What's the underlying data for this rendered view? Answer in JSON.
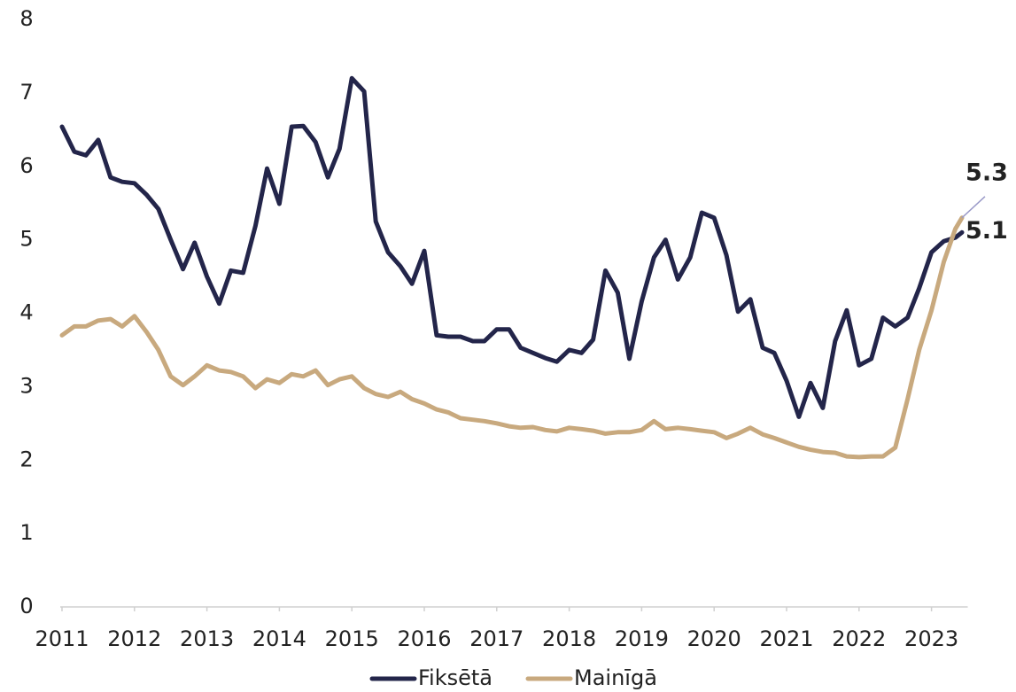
{
  "chart_data": {
    "type": "line",
    "x": [
      2011,
      2011.17,
      2011.33,
      2011.5,
      2011.67,
      2011.83,
      2012,
      2012.17,
      2012.33,
      2012.5,
      2012.67,
      2012.83,
      2013,
      2013.17,
      2013.33,
      2013.5,
      2013.67,
      2013.83,
      2014,
      2014.17,
      2014.33,
      2014.5,
      2014.67,
      2014.83,
      2015,
      2015.17,
      2015.33,
      2015.5,
      2015.67,
      2015.83,
      2016,
      2016.17,
      2016.33,
      2016.5,
      2016.67,
      2016.83,
      2017,
      2017.17,
      2017.33,
      2017.5,
      2017.67,
      2017.83,
      2018,
      2018.17,
      2018.33,
      2018.5,
      2018.67,
      2018.83,
      2019,
      2019.17,
      2019.33,
      2019.5,
      2019.67,
      2019.83,
      2020,
      2020.17,
      2020.33,
      2020.5,
      2020.67,
      2020.83,
      2021,
      2021.17,
      2021.33,
      2021.5,
      2021.67,
      2021.83,
      2022,
      2022.17,
      2022.33,
      2022.5,
      2022.67,
      2022.83,
      2023,
      2023.17,
      2023.33,
      2023.42
    ],
    "series": [
      {
        "name": "Fiksētā",
        "color": "#23254a",
        "end_label": "5.1",
        "values": [
          6.54,
          6.2,
          6.15,
          6.36,
          5.85,
          5.79,
          5.77,
          5.61,
          5.42,
          5.0,
          4.6,
          4.96,
          4.5,
          4.13,
          4.58,
          4.55,
          5.19,
          5.97,
          5.49,
          6.54,
          6.55,
          6.33,
          5.85,
          6.24,
          7.2,
          7.02,
          5.25,
          4.83,
          4.64,
          4.4,
          4.85,
          3.7,
          3.68,
          3.68,
          3.62,
          3.62,
          3.78,
          3.78,
          3.53,
          3.46,
          3.39,
          3.34,
          3.5,
          3.46,
          3.64,
          4.58,
          4.28,
          3.38,
          4.16,
          4.76,
          5.0,
          4.46,
          4.76,
          5.37,
          5.3,
          4.79,
          4.02,
          4.19,
          3.53,
          3.46,
          3.08,
          2.59,
          3.05,
          2.71,
          3.62,
          4.04,
          3.29,
          3.38,
          3.94,
          3.82,
          3.94,
          4.34,
          4.83,
          4.98,
          5.03,
          5.1
        ]
      },
      {
        "name": "Mainīgā",
        "color": "#c8a97e",
        "end_label": "5.3",
        "values": [
          3.7,
          3.82,
          3.82,
          3.9,
          3.92,
          3.82,
          3.96,
          3.74,
          3.5,
          3.14,
          3.02,
          3.14,
          3.29,
          3.22,
          3.2,
          3.14,
          2.98,
          3.1,
          3.05,
          3.17,
          3.14,
          3.22,
          3.02,
          3.1,
          3.14,
          2.98,
          2.9,
          2.86,
          2.93,
          2.83,
          2.77,
          2.69,
          2.65,
          2.57,
          2.55,
          2.53,
          2.5,
          2.46,
          2.44,
          2.45,
          2.41,
          2.39,
          2.44,
          2.42,
          2.4,
          2.36,
          2.38,
          2.38,
          2.41,
          2.53,
          2.42,
          2.44,
          2.42,
          2.4,
          2.38,
          2.3,
          2.36,
          2.44,
          2.35,
          2.3,
          2.24,
          2.18,
          2.14,
          2.11,
          2.1,
          2.05,
          2.04,
          2.05,
          2.05,
          2.17,
          2.83,
          3.5,
          4.04,
          4.7,
          5.15,
          5.3
        ]
      }
    ],
    "xlim": [
      2011,
      2023.5
    ],
    "xticks": [
      2011,
      2012,
      2013,
      2014,
      2015,
      2016,
      2017,
      2018,
      2019,
      2020,
      2021,
      2022,
      2023
    ],
    "ylim": [
      0,
      8
    ],
    "yticks": [
      0,
      1,
      2,
      3,
      4,
      5,
      6,
      7,
      8
    ],
    "grid": false,
    "legend": "bottom"
  }
}
